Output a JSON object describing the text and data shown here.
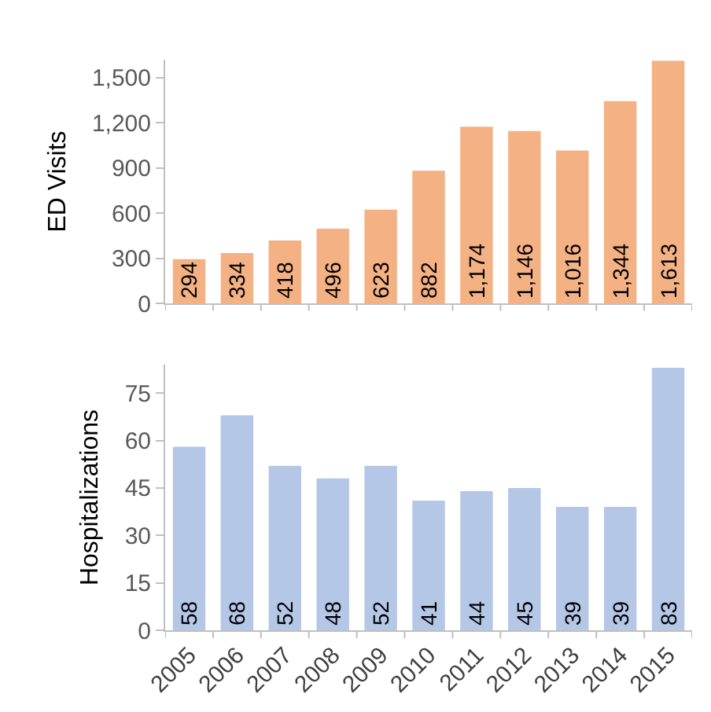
{
  "chart_data": [
    {
      "type": "bar",
      "ylabel": "ED Visits",
      "categories": [
        "2005",
        "2006",
        "2007",
        "2008",
        "2009",
        "2010",
        "2011",
        "2012",
        "2013",
        "2014",
        "2015"
      ],
      "values": [
        294,
        334,
        418,
        496,
        623,
        882,
        1174,
        1146,
        1016,
        1344,
        1613
      ],
      "color": "#f4b183",
      "ylim": [
        0,
        1620
      ],
      "yticks": [
        0,
        {
          "value": 300,
          "label": "300"
        },
        {
          "value": 600,
          "label": "600"
        },
        {
          "value": 900,
          "label": "900"
        },
        {
          "value": 1200,
          "label": "1,200"
        },
        {
          "value": 1500,
          "label": "1,500"
        }
      ],
      "value_labels": [
        "294",
        "334",
        "418",
        "496",
        "623",
        "882",
        "1,174",
        "1,146",
        "1,016",
        "1,344",
        "1,613"
      ],
      "grid": false,
      "tick_labels": "y"
    },
    {
      "type": "bar",
      "ylabel": "Hospitalizations",
      "categories": [
        "2005",
        "2006",
        "2007",
        "2008",
        "2009",
        "2010",
        "2011",
        "2012",
        "2013",
        "2014",
        "2015"
      ],
      "values": [
        58,
        68,
        52,
        48,
        52,
        41,
        44,
        45,
        39,
        39,
        83
      ],
      "color": "#b4c7e7",
      "ylim": [
        0,
        84
      ],
      "yticks": [
        0,
        15,
        30,
        45,
        60,
        75
      ],
      "data_labels": true,
      "grid": false
    }
  ]
}
